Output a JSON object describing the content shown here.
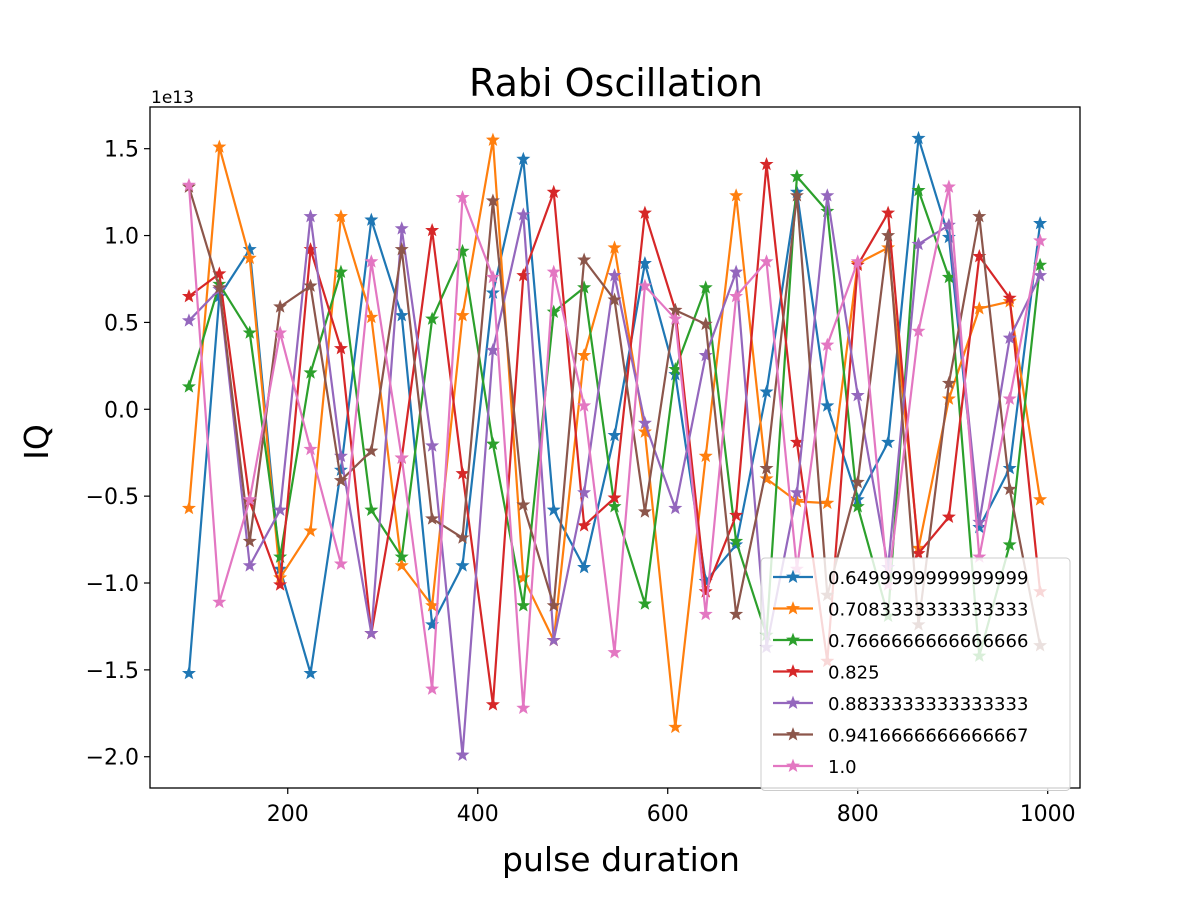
{
  "chart_data": {
    "type": "line",
    "title": "Rabi Oscillation",
    "xlabel": "pulse duration",
    "ylabel": "IQ",
    "y_offset_label": "1e13",
    "xlim": [
      55,
      1034
    ],
    "ylim": [
      -2.18,
      1.74
    ],
    "x_ticks": [
      200,
      400,
      600,
      800,
      1000
    ],
    "x_tick_labels": [
      "200",
      "400",
      "600",
      "800",
      "1000"
    ],
    "y_ticks": [
      -2.0,
      -1.5,
      -1.0,
      -0.5,
      0.0,
      0.5,
      1.0,
      1.5
    ],
    "y_tick_labels": [
      "−2.0",
      "−1.5",
      "−1.0",
      "−0.5",
      "0.0",
      "0.5",
      "1.0",
      "1.5"
    ],
    "grid": false,
    "legend_position": "lower-right",
    "marker": "star",
    "x": [
      96,
      128,
      160,
      192,
      224,
      256,
      288,
      320,
      352,
      384,
      416,
      448,
      480,
      512,
      544,
      576,
      608,
      640,
      672,
      704,
      736,
      768,
      800,
      832,
      864,
      896,
      928,
      960,
      992
    ],
    "series": [
      {
        "name": "0.6499999999999999",
        "color": "#1f77b4",
        "values": [
          -1.52,
          0.65,
          0.92,
          -0.92,
          -1.52,
          -0.35,
          1.09,
          0.54,
          -1.24,
          -0.9,
          0.67,
          1.44,
          -0.58,
          -0.91,
          -0.15,
          0.84,
          0.2,
          -0.99,
          -0.78,
          0.1,
          1.25,
          0.02,
          -0.52,
          -0.19,
          1.56,
          0.99,
          -0.68,
          -0.34,
          1.07
        ]
      },
      {
        "name": "0.7083333333333333",
        "color": "#ff7f0e",
        "values": [
          -0.57,
          1.51,
          0.87,
          -0.97,
          -0.7,
          1.11,
          0.53,
          -0.9,
          -1.13,
          0.54,
          1.55,
          -0.97,
          -1.33,
          0.31,
          0.93,
          -0.13,
          -1.83,
          -0.27,
          1.23,
          -0.4,
          -0.53,
          -0.54,
          0.84,
          0.93,
          -0.8,
          0.06,
          0.58,
          0.62,
          -0.52
        ]
      },
      {
        "name": "0.7666666666666666",
        "color": "#2ca02c",
        "values": [
          0.13,
          0.72,
          0.44,
          -0.85,
          0.21,
          0.79,
          -0.58,
          -0.85,
          0.52,
          0.91,
          -0.2,
          -1.13,
          0.56,
          0.7,
          -0.56,
          -1.12,
          0.23,
          0.7,
          -0.76,
          -1.3,
          1.34,
          1.14,
          -0.56,
          -1.19,
          1.26,
          0.76,
          -1.42,
          -0.78,
          0.83
        ]
      },
      {
        "name": "0.825",
        "color": "#d62728",
        "values": [
          0.65,
          0.78,
          -0.53,
          -1.01,
          0.92,
          0.35,
          -1.29,
          -0.28,
          1.03,
          -0.37,
          -1.7,
          0.77,
          1.25,
          -0.67,
          -0.51,
          1.13,
          0.57,
          -1.05,
          -0.61,
          1.41,
          -0.19,
          -1.45,
          0.83,
          1.13,
          -0.83,
          -0.62,
          0.88,
          0.64,
          -1.05
        ]
      },
      {
        "name": "0.8833333333333333",
        "color": "#9467bd",
        "values": [
          0.51,
          0.69,
          -0.9,
          -0.58,
          1.11,
          -0.27,
          -1.29,
          1.04,
          -0.21,
          -1.99,
          0.34,
          1.12,
          -1.33,
          -0.48,
          0.77,
          -0.08,
          -0.57,
          0.31,
          0.79,
          -1.37,
          -0.48,
          1.23,
          0.08,
          -0.91,
          0.95,
          1.06,
          -0.65,
          0.41,
          0.77
        ]
      },
      {
        "name": "0.9416666666666667",
        "color": "#8c564b",
        "values": [
          1.28,
          0.7,
          -0.76,
          0.59,
          0.71,
          -0.41,
          -0.24,
          0.92,
          -0.63,
          -0.74,
          1.2,
          -0.55,
          -1.13,
          0.86,
          0.63,
          -0.59,
          0.57,
          0.49,
          -1.18,
          -0.34,
          1.23,
          -1.07,
          -0.42,
          1.0,
          -1.24,
          0.15,
          1.11,
          -0.46,
          -1.36
        ]
      },
      {
        "name": "1.0",
        "color": "#e377c2",
        "values": [
          1.29,
          -1.11,
          -0.52,
          0.44,
          -0.23,
          -0.89,
          0.85,
          -0.28,
          -1.61,
          1.22,
          0.76,
          -1.72,
          0.79,
          0.02,
          -1.4,
          0.71,
          0.52,
          -1.18,
          0.65,
          0.85,
          -0.92,
          0.37,
          0.85,
          -1.01,
          0.45,
          1.28,
          -0.85,
          0.06,
          0.97
        ]
      }
    ]
  }
}
